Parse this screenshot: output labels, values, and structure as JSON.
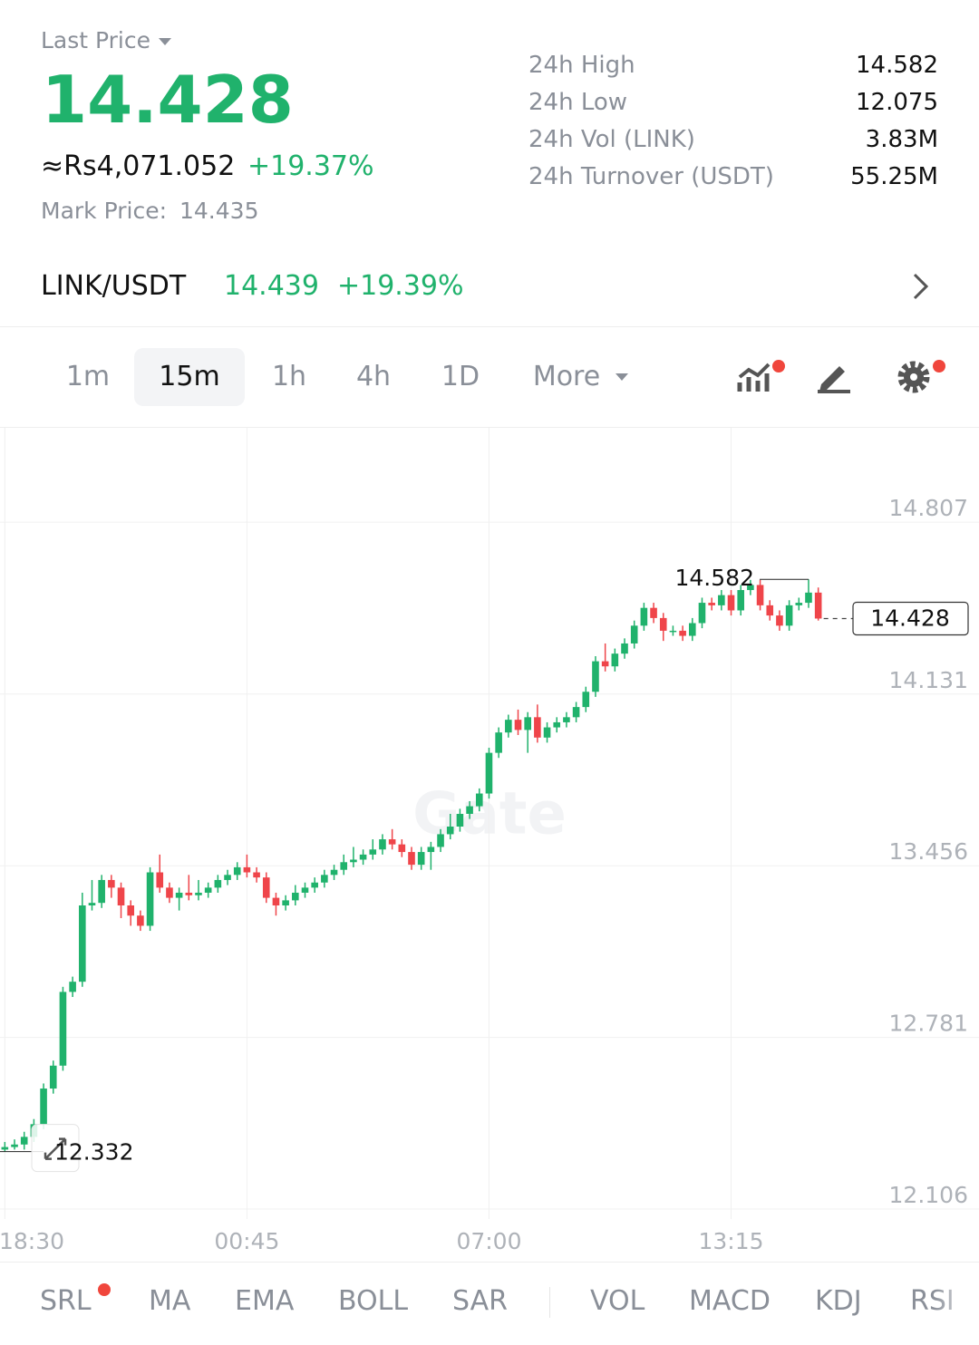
{
  "header": {
    "last_price_label": "Last Price",
    "last_price": "14.428",
    "fiat": "≈Rs4,071.052",
    "change": "+19.37%",
    "mark_price_label": "Mark Price:",
    "mark_price": "14.435"
  },
  "stats": [
    {
      "label": "24h High",
      "value": "14.582"
    },
    {
      "label": "24h Low",
      "value": "12.075"
    },
    {
      "label": "24h Vol (LINK)",
      "value": "3.83M"
    },
    {
      "label": "24h Turnover (USDT)",
      "value": "55.25M"
    }
  ],
  "pair": {
    "name": "LINK/USDT",
    "price": "14.439",
    "change": "+19.39%"
  },
  "intervals": [
    "1m",
    "15m",
    "1h",
    "4h",
    "1D",
    "More"
  ],
  "active_interval_index": 1,
  "indicators": [
    "SRL",
    "MA",
    "EMA",
    "BOLL",
    "SAR",
    "VOL",
    "MACD",
    "KDJ",
    "RSI"
  ],
  "chart_data": {
    "type": "candlestick",
    "watermark": "Gate",
    "up_color": "#20b26c",
    "down_color": "#ef454a",
    "open": [
      12.34,
      12.35,
      12.36,
      12.39,
      12.44,
      12.58,
      12.67,
      12.96,
      13.0,
      13.3,
      13.31,
      13.4,
      13.37,
      13.3,
      13.26,
      13.22,
      13.43,
      13.37,
      13.33,
      13.35,
      13.34,
      13.35,
      13.37,
      13.4,
      13.42,
      13.45,
      13.43,
      13.41,
      13.33,
      13.3,
      13.32,
      13.35,
      13.37,
      13.39,
      13.42,
      13.44,
      13.47,
      13.48,
      13.5,
      13.52,
      13.56,
      13.54,
      13.51,
      13.46,
      13.51,
      13.53,
      13.58,
      13.61,
      13.66,
      13.69,
      13.74,
      13.9,
      13.98,
      14.03,
      13.99,
      14.04,
      13.96,
      14.0,
      14.02,
      14.04,
      14.08,
      14.14,
      14.26,
      14.24,
      14.29,
      14.33,
      14.4,
      14.47,
      14.43,
      14.38,
      14.38,
      14.36,
      14.41,
      14.49,
      14.48,
      14.52,
      14.46,
      14.54,
      14.56,
      14.48,
      14.44,
      14.4,
      14.48,
      14.49,
      14.53
    ],
    "high": [
      12.37,
      12.38,
      12.41,
      12.46,
      12.6,
      12.69,
      12.98,
      13.02,
      13.35,
      13.4,
      13.42,
      13.42,
      13.39,
      13.32,
      13.28,
      13.45,
      13.5,
      13.39,
      13.37,
      13.42,
      13.4,
      13.39,
      13.42,
      13.44,
      13.47,
      13.5,
      13.45,
      13.43,
      13.35,
      13.34,
      13.38,
      13.39,
      13.41,
      13.44,
      13.46,
      13.5,
      13.53,
      13.52,
      13.56,
      13.58,
      13.6,
      13.56,
      13.53,
      13.53,
      13.55,
      13.6,
      13.66,
      13.68,
      13.71,
      13.76,
      13.92,
      14.0,
      14.05,
      14.07,
      14.06,
      14.09,
      14.02,
      14.04,
      14.06,
      14.1,
      14.16,
      14.28,
      14.33,
      14.31,
      14.35,
      14.42,
      14.49,
      14.49,
      14.45,
      14.4,
      14.4,
      14.43,
      14.51,
      14.51,
      14.54,
      14.54,
      14.56,
      14.58,
      14.58,
      14.5,
      14.46,
      14.5,
      14.51,
      14.582,
      14.55
    ],
    "low": [
      12.332,
      12.34,
      12.34,
      12.37,
      12.42,
      12.56,
      12.65,
      12.94,
      12.98,
      13.28,
      13.29,
      13.33,
      13.25,
      13.22,
      13.2,
      13.2,
      13.35,
      13.31,
      13.28,
      13.32,
      13.32,
      13.33,
      13.35,
      13.38,
      13.4,
      13.41,
      13.39,
      13.31,
      13.26,
      13.28,
      13.3,
      13.33,
      13.35,
      13.37,
      13.4,
      13.42,
      13.45,
      13.46,
      13.48,
      13.5,
      13.52,
      13.49,
      13.44,
      13.44,
      13.44,
      13.51,
      13.56,
      13.59,
      13.64,
      13.67,
      13.72,
      13.88,
      13.96,
      13.97,
      13.9,
      13.94,
      13.94,
      13.98,
      14.0,
      14.02,
      14.06,
      14.12,
      14.22,
      14.22,
      14.27,
      14.31,
      14.38,
      14.41,
      14.34,
      14.36,
      14.34,
      14.34,
      14.39,
      14.46,
      14.46,
      14.44,
      14.44,
      14.52,
      14.46,
      14.42,
      14.38,
      14.38,
      14.46,
      14.47,
      14.42
    ],
    "close": [
      12.35,
      12.36,
      12.39,
      12.44,
      12.58,
      12.67,
      12.96,
      13.0,
      13.3,
      13.31,
      13.4,
      13.37,
      13.3,
      13.26,
      13.22,
      13.43,
      13.37,
      13.33,
      13.35,
      13.34,
      13.35,
      13.37,
      13.4,
      13.42,
      13.45,
      13.43,
      13.41,
      13.33,
      13.3,
      13.32,
      13.35,
      13.37,
      13.39,
      13.42,
      13.44,
      13.47,
      13.48,
      13.5,
      13.52,
      13.56,
      13.54,
      13.51,
      13.46,
      13.51,
      13.53,
      13.58,
      13.61,
      13.66,
      13.69,
      13.74,
      13.9,
      13.98,
      14.03,
      13.99,
      14.04,
      13.96,
      14.0,
      14.02,
      14.04,
      14.08,
      14.14,
      14.26,
      14.24,
      14.29,
      14.33,
      14.4,
      14.47,
      14.43,
      14.38,
      14.38,
      14.36,
      14.41,
      14.49,
      14.48,
      14.52,
      14.46,
      14.54,
      14.56,
      14.48,
      14.44,
      14.4,
      14.48,
      14.49,
      14.53,
      14.428
    ],
    "high_marker": 14.582,
    "low_marker": 12.332,
    "last_price": 14.428,
    "ylim": [
      12.067,
      15.178
    ],
    "yticks": [
      14.807,
      14.131,
      13.456,
      12.781,
      12.106
    ],
    "xlim": [
      -0.5,
      100.6
    ],
    "xticks": [
      {
        "value": 0,
        "label": "18:30"
      },
      {
        "value": 25,
        "label": "00:45"
      },
      {
        "value": 50,
        "label": "07:00"
      },
      {
        "value": 75,
        "label": "13:15"
      }
    ],
    "grid": true
  }
}
